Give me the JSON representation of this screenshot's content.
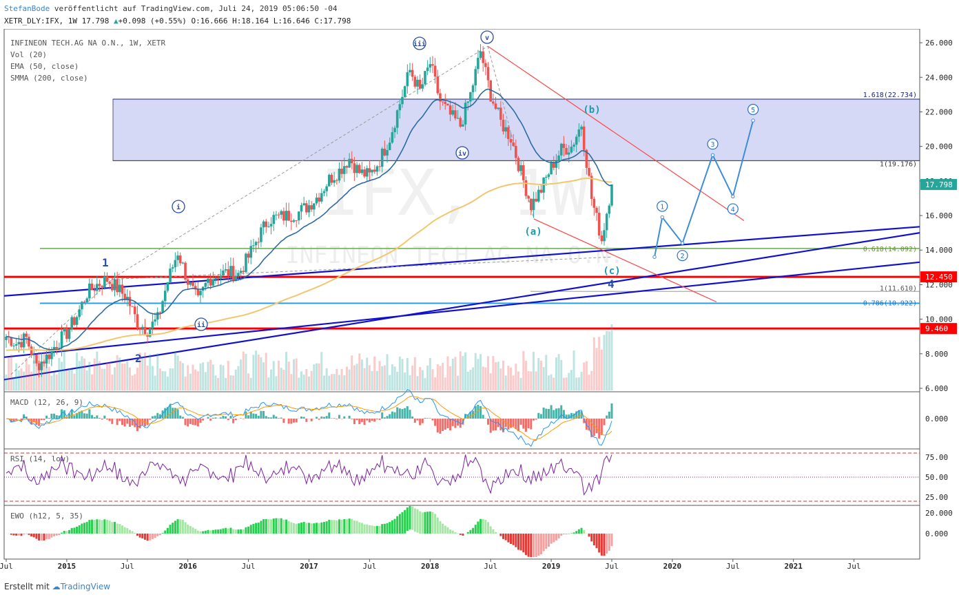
{
  "header": {
    "author": "StefanBode",
    "published": "veröffentlicht auf TradingView.com, Juli 24, 2019 05:06:50 -04",
    "symbol": "XETR_DLY:IFX, 1W 17.798",
    "change": "+0.098 (+0.55%)",
    "ohlc": "O:16.666 H:18.164 L:16.646 C:17.798"
  },
  "footer": {
    "created_with": "Erstellt mit",
    "brand": "TradingView"
  },
  "chart_data": {
    "type": "candlestick",
    "legend": [
      "INFINEON TECH.AG NA O.N., 1W, XETR",
      "Vol (20)",
      "EMA (50, close)",
      "SMMA (200, close)"
    ],
    "watermark": {
      "symbol": "IFX, 1W",
      "name": "INFINEON TECH.AG NA O.N."
    },
    "x_ticks": [
      "Jul",
      "2015",
      "Jul",
      "2016",
      "Jul",
      "2017",
      "Jul",
      "2018",
      "Jul",
      "2019",
      "Jul",
      "2020",
      "Jul",
      "2021",
      "Jul"
    ],
    "y_ticks": [
      "26.000",
      "24.000",
      "22.000",
      "20.000",
      "18.000",
      "16.000",
      "14.000",
      "12.000",
      "10.000",
      "8.000",
      "6.000"
    ],
    "ylim": [
      5.8,
      26.8
    ],
    "last_price": "17.798",
    "price_path": [
      {
        "t": "2014-07",
        "v": 9.0
      },
      {
        "t": "2014-08",
        "v": 8.6
      },
      {
        "t": "2014-09",
        "v": 8.9
      },
      {
        "t": "2014-10",
        "v": 7.3
      },
      {
        "t": "2014-11",
        "v": 7.8
      },
      {
        "t": "2014-12",
        "v": 8.6
      },
      {
        "t": "2015-01",
        "v": 9.2
      },
      {
        "t": "2015-02",
        "v": 10.2
      },
      {
        "t": "2015-03",
        "v": 11.5
      },
      {
        "t": "2015-04",
        "v": 12.0
      },
      {
        "t": "2015-05",
        "v": 12.3
      },
      {
        "t": "2015-06",
        "v": 11.8
      },
      {
        "t": "2015-07",
        "v": 11.2
      },
      {
        "t": "2015-08",
        "v": 9.8
      },
      {
        "t": "2015-09",
        "v": 9.4
      },
      {
        "t": "2015-10",
        "v": 10.0
      },
      {
        "t": "2015-11",
        "v": 12.2
      },
      {
        "t": "2015-12",
        "v": 13.9
      },
      {
        "t": "2016-01",
        "v": 12.2
      },
      {
        "t": "2016-02",
        "v": 11.0
      },
      {
        "t": "2016-03",
        "v": 12.3
      },
      {
        "t": "2016-04",
        "v": 12.6
      },
      {
        "t": "2016-05",
        "v": 12.7
      },
      {
        "t": "2016-06",
        "v": 12.6
      },
      {
        "t": "2016-07",
        "v": 13.6
      },
      {
        "t": "2016-08",
        "v": 14.8
      },
      {
        "t": "2016-09",
        "v": 15.8
      },
      {
        "t": "2016-10",
        "v": 15.9
      },
      {
        "t": "2016-11",
        "v": 16.0
      },
      {
        "t": "2016-12",
        "v": 16.2
      },
      {
        "t": "2017-01",
        "v": 16.6
      },
      {
        "t": "2017-02",
        "v": 17.2
      },
      {
        "t": "2017-03",
        "v": 18.1
      },
      {
        "t": "2017-04",
        "v": 18.6
      },
      {
        "t": "2017-05",
        "v": 19.3
      },
      {
        "t": "2017-06",
        "v": 18.5
      },
      {
        "t": "2017-07",
        "v": 18.3
      },
      {
        "t": "2017-08",
        "v": 19.2
      },
      {
        "t": "2017-09",
        "v": 20.5
      },
      {
        "t": "2017-10",
        "v": 22.5
      },
      {
        "t": "2017-11",
        "v": 24.4
      },
      {
        "t": "2017-12",
        "v": 23.2
      },
      {
        "t": "2018-01",
        "v": 24.8
      },
      {
        "t": "2018-02",
        "v": 22.6
      },
      {
        "t": "2018-03",
        "v": 21.8
      },
      {
        "t": "2018-04",
        "v": 21.2
      },
      {
        "t": "2018-05",
        "v": 23.0
      },
      {
        "t": "2018-06",
        "v": 25.5
      },
      {
        "t": "2018-07",
        "v": 23.0
      },
      {
        "t": "2018-08",
        "v": 21.4
      },
      {
        "t": "2018-09",
        "v": 20.5
      },
      {
        "t": "2018-10",
        "v": 18.5
      },
      {
        "t": "2018-11",
        "v": 16.6
      },
      {
        "t": "2018-12",
        "v": 17.5
      },
      {
        "t": "2019-01",
        "v": 18.8
      },
      {
        "t": "2019-02",
        "v": 19.8
      },
      {
        "t": "2019-03",
        "v": 20.0
      },
      {
        "t": "2019-04",
        "v": 21.3
      },
      {
        "t": "2019-05",
        "v": 17.0
      },
      {
        "t": "2019-06",
        "v": 14.6
      },
      {
        "t": "2019-07",
        "v": 17.8
      }
    ],
    "levels": [
      {
        "label": "1.618(22.734)",
        "value": 22.734
      },
      {
        "label": "1(19.176)",
        "value": 19.176
      },
      {
        "label": "0.618(14.092)",
        "value": 14.092
      },
      {
        "label": "1(11.610)",
        "value": 11.61
      },
      {
        "label": "0.786(10.922)",
        "value": 10.922
      },
      {
        "label": "12.450",
        "value": 12.45
      },
      {
        "label": "9.460",
        "value": 9.46
      }
    ],
    "fib_zone": [
      19.176,
      22.734
    ],
    "wave_labels": [
      "1",
      "2",
      "i",
      "ii",
      "iii",
      "iv",
      "v",
      "(a)",
      "(b)",
      "(c)",
      "4"
    ],
    "projection": [
      {
        "label": "1",
        "t": "2019-12",
        "v": 15.9
      },
      {
        "label": "2",
        "t": "2020-02",
        "v": 14.4
      },
      {
        "label": "3",
        "t": "2020-05",
        "v": 19.5
      },
      {
        "label": "4",
        "t": "2020-07",
        "v": 17.1
      },
      {
        "label": "5",
        "t": "2020-09",
        "v": 21.5
      }
    ],
    "panels": {
      "macd": {
        "title": "MACD (12, 26, 9)",
        "ticks": [
          "0.000"
        ]
      },
      "rsi": {
        "title": "RSI (14, low)",
        "ticks": [
          "75.00",
          "50.00",
          "25.00"
        ]
      },
      "ewo": {
        "title": "EWO (h12, 5, 35)",
        "ticks": [
          "20.000",
          "0.000"
        ]
      }
    },
    "colors": {
      "up": "#26a69a",
      "down": "#ef5350",
      "ema": "#2d6aa1",
      "smma": "#f2c66d",
      "support": "#ff0000",
      "trend": "#1111cc",
      "fib_zone": "#3f51d6",
      "fib_618": "#6aa84f",
      "fib_786": "#2196f3",
      "projection": "#3d8bd9",
      "price_tag": "#26a69a"
    }
  }
}
